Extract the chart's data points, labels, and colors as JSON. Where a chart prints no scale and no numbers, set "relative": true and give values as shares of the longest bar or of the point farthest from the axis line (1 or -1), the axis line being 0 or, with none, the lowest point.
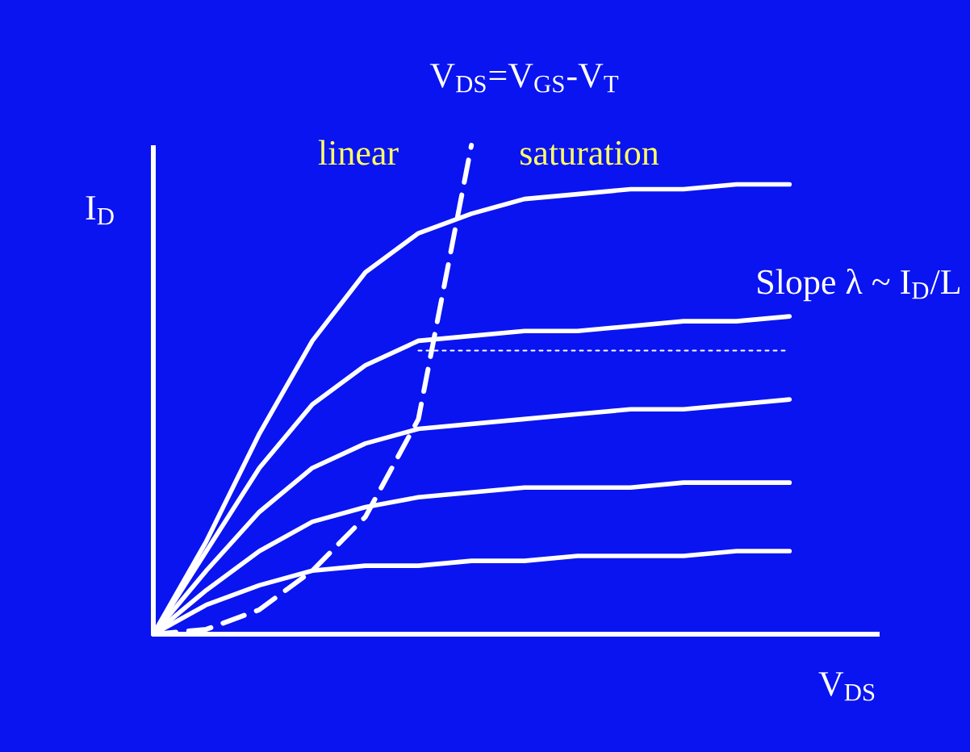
{
  "chart_data": {
    "type": "line",
    "title": "V$_{DS}$=V$_{GS}$-V$_{T}$",
    "xlabel": "V$_{DS}$",
    "ylabel": "I$_{D}$",
    "relative": true,
    "marker": "none",
    "annotations": [
      "linear",
      "saturation",
      "Slope λ ~ I$_{D}$/L"
    ],
    "categories": [
      null,
      null,
      null,
      null,
      null,
      null,
      null,
      null,
      null,
      null,
      null,
      null,
      null
    ],
    "series": [
      {
        "color": "#ffffff",
        "line_style": "solid",
        "values": [
          0,
          0.19,
          0.41,
          0.6,
          0.74,
          0.82,
          0.86,
          0.89,
          0.9,
          0.91,
          0.91,
          0.92,
          0.92
        ]
      },
      {
        "color": "#ffffff",
        "line_style": "solid",
        "values": [
          0,
          0.17,
          0.34,
          0.47,
          0.55,
          0.6,
          0.61,
          0.62,
          0.62,
          0.63,
          0.64,
          0.64,
          0.65
        ]
      },
      {
        "color": "#ffffff",
        "line_style": "solid",
        "values": [
          0,
          0.13,
          0.25,
          0.34,
          0.39,
          0.42,
          0.43,
          0.44,
          0.45,
          0.46,
          0.46,
          0.47,
          0.48
        ]
      },
      {
        "color": "#ffffff",
        "line_style": "solid",
        "values": [
          0,
          0.09,
          0.17,
          0.23,
          0.26,
          0.28,
          0.29,
          0.3,
          0.3,
          0.3,
          0.31,
          0.31,
          0.31
        ]
      },
      {
        "color": "#ffffff",
        "line_style": "solid",
        "values": [
          0,
          0.06,
          0.1,
          0.13,
          0.14,
          0.14,
          0.15,
          0.15,
          0.16,
          0.16,
          0.16,
          0.17,
          0.17
        ]
      },
      {
        "color": "#ffffff",
        "line_style": "dashed",
        "values": [
          0,
          0.01,
          0.05,
          0.13,
          0.24,
          0.44,
          1.0,
          null,
          null,
          null,
          null,
          null,
          null
        ]
      },
      {
        "color": "#ffffff",
        "line_style": "dotted",
        "values": [
          null,
          null,
          null,
          null,
          null,
          0.58,
          0.58,
          0.58,
          0.58,
          0.58,
          0.58,
          0.58,
          0.58
        ]
      }
    ]
  }
}
